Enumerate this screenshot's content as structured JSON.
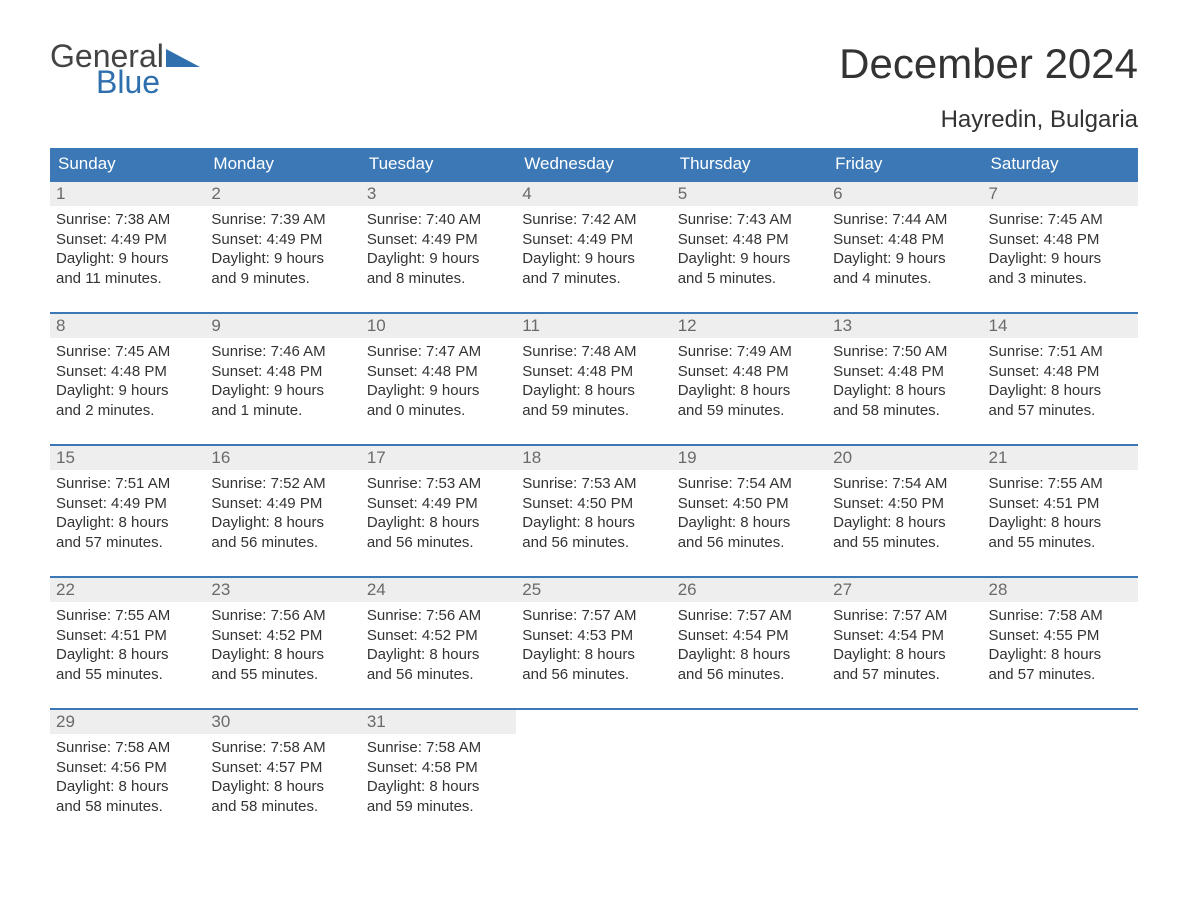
{
  "brand": {
    "name_general": "General",
    "name_blue": "Blue",
    "accent_color": "#2f6fae"
  },
  "title": "December 2024",
  "location": "Hayredin, Bulgaria",
  "colors": {
    "header_bg": "#3b78b5",
    "header_text": "#ffffff",
    "daynum_bg": "#eeeeee",
    "daynum_text": "#6a6a6a",
    "body_text": "#333333",
    "week_border": "#3b78b5",
    "page_bg": "#ffffff"
  },
  "typography": {
    "title_fontsize": 42,
    "location_fontsize": 24,
    "header_fontsize": 17,
    "body_fontsize": 15
  },
  "day_headers": [
    "Sunday",
    "Monday",
    "Tuesday",
    "Wednesday",
    "Thursday",
    "Friday",
    "Saturday"
  ],
  "weeks": [
    [
      {
        "day": "1",
        "sunrise": "Sunrise: 7:38 AM",
        "sunset": "Sunset: 4:49 PM",
        "dl1": "Daylight: 9 hours",
        "dl2": "and 11 minutes."
      },
      {
        "day": "2",
        "sunrise": "Sunrise: 7:39 AM",
        "sunset": "Sunset: 4:49 PM",
        "dl1": "Daylight: 9 hours",
        "dl2": "and 9 minutes."
      },
      {
        "day": "3",
        "sunrise": "Sunrise: 7:40 AM",
        "sunset": "Sunset: 4:49 PM",
        "dl1": "Daylight: 9 hours",
        "dl2": "and 8 minutes."
      },
      {
        "day": "4",
        "sunrise": "Sunrise: 7:42 AM",
        "sunset": "Sunset: 4:49 PM",
        "dl1": "Daylight: 9 hours",
        "dl2": "and 7 minutes."
      },
      {
        "day": "5",
        "sunrise": "Sunrise: 7:43 AM",
        "sunset": "Sunset: 4:48 PM",
        "dl1": "Daylight: 9 hours",
        "dl2": "and 5 minutes."
      },
      {
        "day": "6",
        "sunrise": "Sunrise: 7:44 AM",
        "sunset": "Sunset: 4:48 PM",
        "dl1": "Daylight: 9 hours",
        "dl2": "and 4 minutes."
      },
      {
        "day": "7",
        "sunrise": "Sunrise: 7:45 AM",
        "sunset": "Sunset: 4:48 PM",
        "dl1": "Daylight: 9 hours",
        "dl2": "and 3 minutes."
      }
    ],
    [
      {
        "day": "8",
        "sunrise": "Sunrise: 7:45 AM",
        "sunset": "Sunset: 4:48 PM",
        "dl1": "Daylight: 9 hours",
        "dl2": "and 2 minutes."
      },
      {
        "day": "9",
        "sunrise": "Sunrise: 7:46 AM",
        "sunset": "Sunset: 4:48 PM",
        "dl1": "Daylight: 9 hours",
        "dl2": "and 1 minute."
      },
      {
        "day": "10",
        "sunrise": "Sunrise: 7:47 AM",
        "sunset": "Sunset: 4:48 PM",
        "dl1": "Daylight: 9 hours",
        "dl2": "and 0 minutes."
      },
      {
        "day": "11",
        "sunrise": "Sunrise: 7:48 AM",
        "sunset": "Sunset: 4:48 PM",
        "dl1": "Daylight: 8 hours",
        "dl2": "and 59 minutes."
      },
      {
        "day": "12",
        "sunrise": "Sunrise: 7:49 AM",
        "sunset": "Sunset: 4:48 PM",
        "dl1": "Daylight: 8 hours",
        "dl2": "and 59 minutes."
      },
      {
        "day": "13",
        "sunrise": "Sunrise: 7:50 AM",
        "sunset": "Sunset: 4:48 PM",
        "dl1": "Daylight: 8 hours",
        "dl2": "and 58 minutes."
      },
      {
        "day": "14",
        "sunrise": "Sunrise: 7:51 AM",
        "sunset": "Sunset: 4:48 PM",
        "dl1": "Daylight: 8 hours",
        "dl2": "and 57 minutes."
      }
    ],
    [
      {
        "day": "15",
        "sunrise": "Sunrise: 7:51 AM",
        "sunset": "Sunset: 4:49 PM",
        "dl1": "Daylight: 8 hours",
        "dl2": "and 57 minutes."
      },
      {
        "day": "16",
        "sunrise": "Sunrise: 7:52 AM",
        "sunset": "Sunset: 4:49 PM",
        "dl1": "Daylight: 8 hours",
        "dl2": "and 56 minutes."
      },
      {
        "day": "17",
        "sunrise": "Sunrise: 7:53 AM",
        "sunset": "Sunset: 4:49 PM",
        "dl1": "Daylight: 8 hours",
        "dl2": "and 56 minutes."
      },
      {
        "day": "18",
        "sunrise": "Sunrise: 7:53 AM",
        "sunset": "Sunset: 4:50 PM",
        "dl1": "Daylight: 8 hours",
        "dl2": "and 56 minutes."
      },
      {
        "day": "19",
        "sunrise": "Sunrise: 7:54 AM",
        "sunset": "Sunset: 4:50 PM",
        "dl1": "Daylight: 8 hours",
        "dl2": "and 56 minutes."
      },
      {
        "day": "20",
        "sunrise": "Sunrise: 7:54 AM",
        "sunset": "Sunset: 4:50 PM",
        "dl1": "Daylight: 8 hours",
        "dl2": "and 55 minutes."
      },
      {
        "day": "21",
        "sunrise": "Sunrise: 7:55 AM",
        "sunset": "Sunset: 4:51 PM",
        "dl1": "Daylight: 8 hours",
        "dl2": "and 55 minutes."
      }
    ],
    [
      {
        "day": "22",
        "sunrise": "Sunrise: 7:55 AM",
        "sunset": "Sunset: 4:51 PM",
        "dl1": "Daylight: 8 hours",
        "dl2": "and 55 minutes."
      },
      {
        "day": "23",
        "sunrise": "Sunrise: 7:56 AM",
        "sunset": "Sunset: 4:52 PM",
        "dl1": "Daylight: 8 hours",
        "dl2": "and 55 minutes."
      },
      {
        "day": "24",
        "sunrise": "Sunrise: 7:56 AM",
        "sunset": "Sunset: 4:52 PM",
        "dl1": "Daylight: 8 hours",
        "dl2": "and 56 minutes."
      },
      {
        "day": "25",
        "sunrise": "Sunrise: 7:57 AM",
        "sunset": "Sunset: 4:53 PM",
        "dl1": "Daylight: 8 hours",
        "dl2": "and 56 minutes."
      },
      {
        "day": "26",
        "sunrise": "Sunrise: 7:57 AM",
        "sunset": "Sunset: 4:54 PM",
        "dl1": "Daylight: 8 hours",
        "dl2": "and 56 minutes."
      },
      {
        "day": "27",
        "sunrise": "Sunrise: 7:57 AM",
        "sunset": "Sunset: 4:54 PM",
        "dl1": "Daylight: 8 hours",
        "dl2": "and 57 minutes."
      },
      {
        "day": "28",
        "sunrise": "Sunrise: 7:58 AM",
        "sunset": "Sunset: 4:55 PM",
        "dl1": "Daylight: 8 hours",
        "dl2": "and 57 minutes."
      }
    ],
    [
      {
        "day": "29",
        "sunrise": "Sunrise: 7:58 AM",
        "sunset": "Sunset: 4:56 PM",
        "dl1": "Daylight: 8 hours",
        "dl2": "and 58 minutes."
      },
      {
        "day": "30",
        "sunrise": "Sunrise: 7:58 AM",
        "sunset": "Sunset: 4:57 PM",
        "dl1": "Daylight: 8 hours",
        "dl2": "and 58 minutes."
      },
      {
        "day": "31",
        "sunrise": "Sunrise: 7:58 AM",
        "sunset": "Sunset: 4:58 PM",
        "dl1": "Daylight: 8 hours",
        "dl2": "and 59 minutes."
      },
      {
        "empty": true
      },
      {
        "empty": true
      },
      {
        "empty": true
      },
      {
        "empty": true
      }
    ]
  ]
}
